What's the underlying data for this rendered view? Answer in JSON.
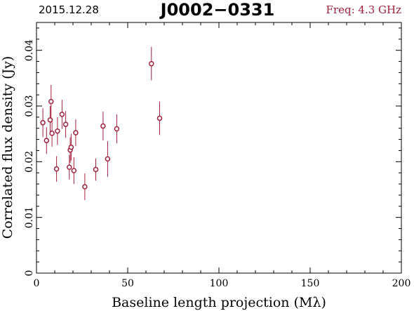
{
  "header": {
    "date": "2015.12.28",
    "source": "J0002−0331",
    "frequency": "Freq: 4.3 GHz"
  },
  "chart_data": {
    "type": "scatter",
    "xlabel": "Baseline length projection (Mλ)",
    "ylabel": "Correlated flux density (Jy)",
    "xlim": [
      0,
      200
    ],
    "ylim": [
      0,
      0.045
    ],
    "xticks": [
      0,
      50,
      100,
      150,
      200
    ],
    "xtick_labels": [
      "0",
      "50",
      "100",
      "150",
      "200"
    ],
    "yticks": [
      0,
      0.01,
      0.02,
      0.03,
      0.04
    ],
    "ytick_labels": [
      "0",
      "0.01",
      "0.02",
      "0.03",
      "0.04"
    ],
    "grid": false,
    "marker_color": "#a0203c",
    "points": [
      {
        "x": 3.5,
        "y": 0.027,
        "err": 0.0026
      },
      {
        "x": 5.5,
        "y": 0.0238,
        "err": 0.0024
      },
      {
        "x": 7.5,
        "y": 0.0275,
        "err": 0.0025
      },
      {
        "x": 8.0,
        "y": 0.0308,
        "err": 0.003
      },
      {
        "x": 8.5,
        "y": 0.0251,
        "err": 0.0024
      },
      {
        "x": 11.0,
        "y": 0.0187,
        "err": 0.0023
      },
      {
        "x": 11.5,
        "y": 0.0255,
        "err": 0.0025
      },
      {
        "x": 14.0,
        "y": 0.0285,
        "err": 0.0026
      },
      {
        "x": 16.0,
        "y": 0.0267,
        "err": 0.0024
      },
      {
        "x": 18.0,
        "y": 0.019,
        "err": 0.0022
      },
      {
        "x": 18.5,
        "y": 0.0221,
        "err": 0.0023
      },
      {
        "x": 19.0,
        "y": 0.0226,
        "err": 0.0024
      },
      {
        "x": 20.5,
        "y": 0.0184,
        "err": 0.0024
      },
      {
        "x": 21.5,
        "y": 0.0252,
        "err": 0.0024
      },
      {
        "x": 26.5,
        "y": 0.0155,
        "err": 0.0024
      },
      {
        "x": 32.5,
        "y": 0.0186,
        "err": 0.002
      },
      {
        "x": 36.5,
        "y": 0.0264,
        "err": 0.0026
      },
      {
        "x": 39.0,
        "y": 0.0205,
        "err": 0.0032
      },
      {
        "x": 44.0,
        "y": 0.0259,
        "err": 0.0026
      },
      {
        "x": 63.0,
        "y": 0.0376,
        "err": 0.003
      },
      {
        "x": 67.5,
        "y": 0.0278,
        "err": 0.003
      }
    ]
  }
}
